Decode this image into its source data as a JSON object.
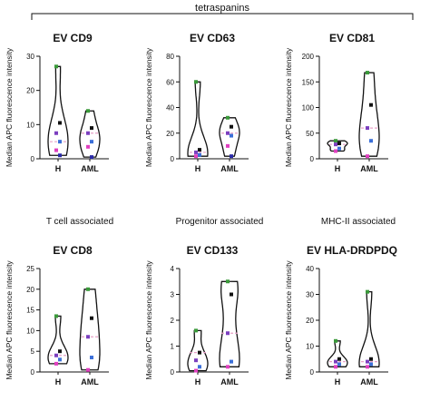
{
  "figure": {
    "bracket_label": "tetraspanins",
    "group_labels": [
      "T cell associated",
      "Progenitor associated",
      "MHC-II associated"
    ]
  },
  "colors": {
    "violin": "#111111",
    "median": "#e8a0c8",
    "points": [
      "#3a9a3a",
      "#111111",
      "#7b3fbf",
      "#3b6fd8",
      "#e040c0",
      "#2a2aa8"
    ]
  },
  "chart_data": [
    {
      "type": "violin",
      "title": "EV CD9",
      "ylabel": "Median APC fluorescence intensity",
      "ylim": [
        0,
        30
      ],
      "yticks": [
        0,
        10,
        20,
        30
      ],
      "categories": [
        "H",
        "AML"
      ],
      "groups": [
        {
          "name": "H",
          "median": 5,
          "points": [
            27,
            10.5,
            7.5,
            5,
            2.5,
            1
          ]
        },
        {
          "name": "AML",
          "median": 7.5,
          "points": [
            14,
            9,
            7.5,
            5,
            3.5,
            0.5
          ]
        }
      ]
    },
    {
      "type": "violin",
      "title": "EV CD63",
      "ylabel": "Median APC fluorescence intensity",
      "ylim": [
        0,
        80
      ],
      "yticks": [
        0,
        20,
        40,
        60,
        80
      ],
      "categories": [
        "H",
        "AML"
      ],
      "groups": [
        {
          "name": "H",
          "median": 5,
          "points": [
            60,
            7,
            5,
            3,
            2
          ]
        },
        {
          "name": "AML",
          "median": 20,
          "points": [
            32,
            25,
            20,
            18,
            10,
            2
          ]
        }
      ]
    },
    {
      "type": "violin",
      "title": "EV CD81",
      "ylabel": "Median APC fluorescence intensity",
      "ylim": [
        0,
        200
      ],
      "yticks": [
        0,
        50,
        100,
        150,
        200
      ],
      "categories": [
        "H",
        "AML"
      ],
      "groups": [
        {
          "name": "H",
          "median": 28,
          "points": [
            35,
            30,
            28,
            20,
            15
          ]
        },
        {
          "name": "AML",
          "median": 60,
          "points": [
            168,
            105,
            60,
            35,
            5
          ]
        }
      ]
    },
    {
      "type": "violin",
      "title": "EV CD8",
      "ylabel": "Median APC fluorescence intensity",
      "ylim": [
        0,
        25
      ],
      "yticks": [
        0,
        5,
        10,
        15,
        20,
        25
      ],
      "categories": [
        "H",
        "AML"
      ],
      "groups": [
        {
          "name": "H",
          "median": 4,
          "points": [
            13.5,
            5,
            4,
            3,
            2
          ]
        },
        {
          "name": "AML",
          "median": 8.5,
          "points": [
            20,
            13,
            8.5,
            3.5,
            0.5
          ]
        }
      ]
    },
    {
      "type": "violin",
      "title": "EV CD133",
      "ylabel": "Median APC fluorescence intensity",
      "ylim": [
        0,
        4
      ],
      "yticks": [
        0,
        1,
        2,
        3,
        4
      ],
      "categories": [
        "H",
        "AML"
      ],
      "groups": [
        {
          "name": "H",
          "median": 0.75,
          "points": [
            1.6,
            0.75,
            0.45,
            0.2,
            0.05
          ]
        },
        {
          "name": "AML",
          "median": 1.5,
          "points": [
            3.5,
            3,
            1.5,
            0.4,
            0.2
          ]
        }
      ]
    },
    {
      "type": "violin",
      "title": "EV HLA-DRDPDQ",
      "ylabel": "Median APC fluorescence intensity",
      "ylim": [
        0,
        40
      ],
      "yticks": [
        0,
        10,
        20,
        30,
        40
      ],
      "categories": [
        "H",
        "AML"
      ],
      "groups": [
        {
          "name": "H",
          "median": 4,
          "points": [
            12,
            5,
            4,
            3,
            2
          ]
        },
        {
          "name": "AML",
          "median": 4,
          "points": [
            31,
            5,
            4,
            3,
            2
          ]
        }
      ]
    }
  ]
}
